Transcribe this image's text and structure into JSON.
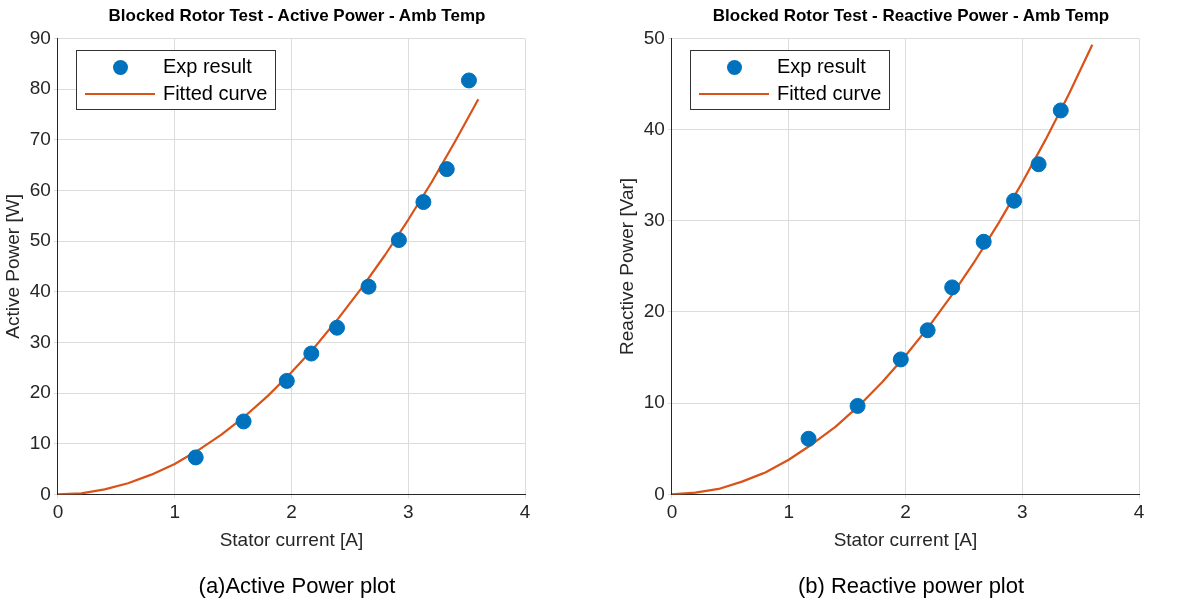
{
  "chart_data": [
    {
      "type": "scatter",
      "title": "Blocked Rotor Test - Active Power - Amb Temp",
      "xlabel": "Stator current [A]",
      "ylabel": "Active Power [W]",
      "xlim": [
        0,
        4
      ],
      "xticks": [
        0,
        1,
        2,
        3,
        4
      ],
      "ylim": [
        0,
        90
      ],
      "yticks": [
        0,
        10,
        20,
        30,
        40,
        50,
        60,
        70,
        80,
        90
      ],
      "grid": true,
      "legend": "top left",
      "annotations": [
        "(a)Active Power plot"
      ],
      "series": [
        {
          "name": "Exp result",
          "type": "scatter",
          "marker": "circle",
          "color": "#0072bd",
          "x": [
            1.18,
            1.59,
            1.96,
            2.17,
            2.39,
            2.66,
            2.92,
            3.13,
            3.33,
            3.52
          ],
          "values": [
            7.3,
            14.4,
            22.4,
            27.8,
            32.9,
            41.0,
            50.2,
            57.7,
            64.2,
            81.7
          ]
        },
        {
          "name": "Fitted curve",
          "type": "line",
          "marker": "none",
          "color": "#d95319",
          "x": [
            0,
            0.2,
            0.4,
            0.6,
            0.8,
            1.0,
            1.2,
            1.4,
            1.6,
            1.8,
            2.0,
            2.2,
            2.4,
            2.6,
            2.8,
            3.0,
            3.2,
            3.4,
            3.6
          ],
          "values": [
            0,
            0.2,
            1.0,
            2.2,
            3.9,
            6.0,
            8.7,
            11.8,
            15.4,
            19.5,
            24.1,
            29.1,
            34.7,
            40.7,
            47.2,
            54.2,
            61.6,
            69.6,
            78.0
          ]
        }
      ]
    },
    {
      "type": "scatter",
      "title": "Blocked Rotor Test - Reactive Power - Amb Temp",
      "xlabel": "Stator current [A]",
      "ylabel": "Reactive Power [Var]",
      "xlim": [
        0,
        4
      ],
      "xticks": [
        0,
        1,
        2,
        3,
        4
      ],
      "ylim": [
        0,
        50
      ],
      "yticks": [
        0,
        10,
        20,
        30,
        40,
        50
      ],
      "grid": true,
      "legend": "top left",
      "annotations": [
        "(b) Reactive power plot"
      ],
      "series": [
        {
          "name": "Exp result",
          "type": "scatter",
          "marker": "circle",
          "color": "#0072bd",
          "x": [
            1.17,
            1.59,
            1.96,
            2.19,
            2.4,
            2.67,
            2.93,
            3.14,
            3.33
          ],
          "values": [
            6.1,
            9.7,
            14.8,
            18.0,
            22.7,
            27.7,
            32.2,
            36.2,
            42.1
          ]
        },
        {
          "name": "Fitted curve",
          "type": "line",
          "marker": "none",
          "color": "#d95319",
          "x": [
            0,
            0.2,
            0.4,
            0.6,
            0.8,
            1.0,
            1.2,
            1.4,
            1.6,
            1.8,
            2.0,
            2.2,
            2.4,
            2.6,
            2.8,
            3.0,
            3.2,
            3.4,
            3.6
          ],
          "values": [
            0,
            0.2,
            0.6,
            1.4,
            2.4,
            3.8,
            5.5,
            7.4,
            9.7,
            12.3,
            15.2,
            18.4,
            21.9,
            25.7,
            29.8,
            34.2,
            38.9,
            43.9,
            49.3
          ]
        }
      ]
    }
  ]
}
